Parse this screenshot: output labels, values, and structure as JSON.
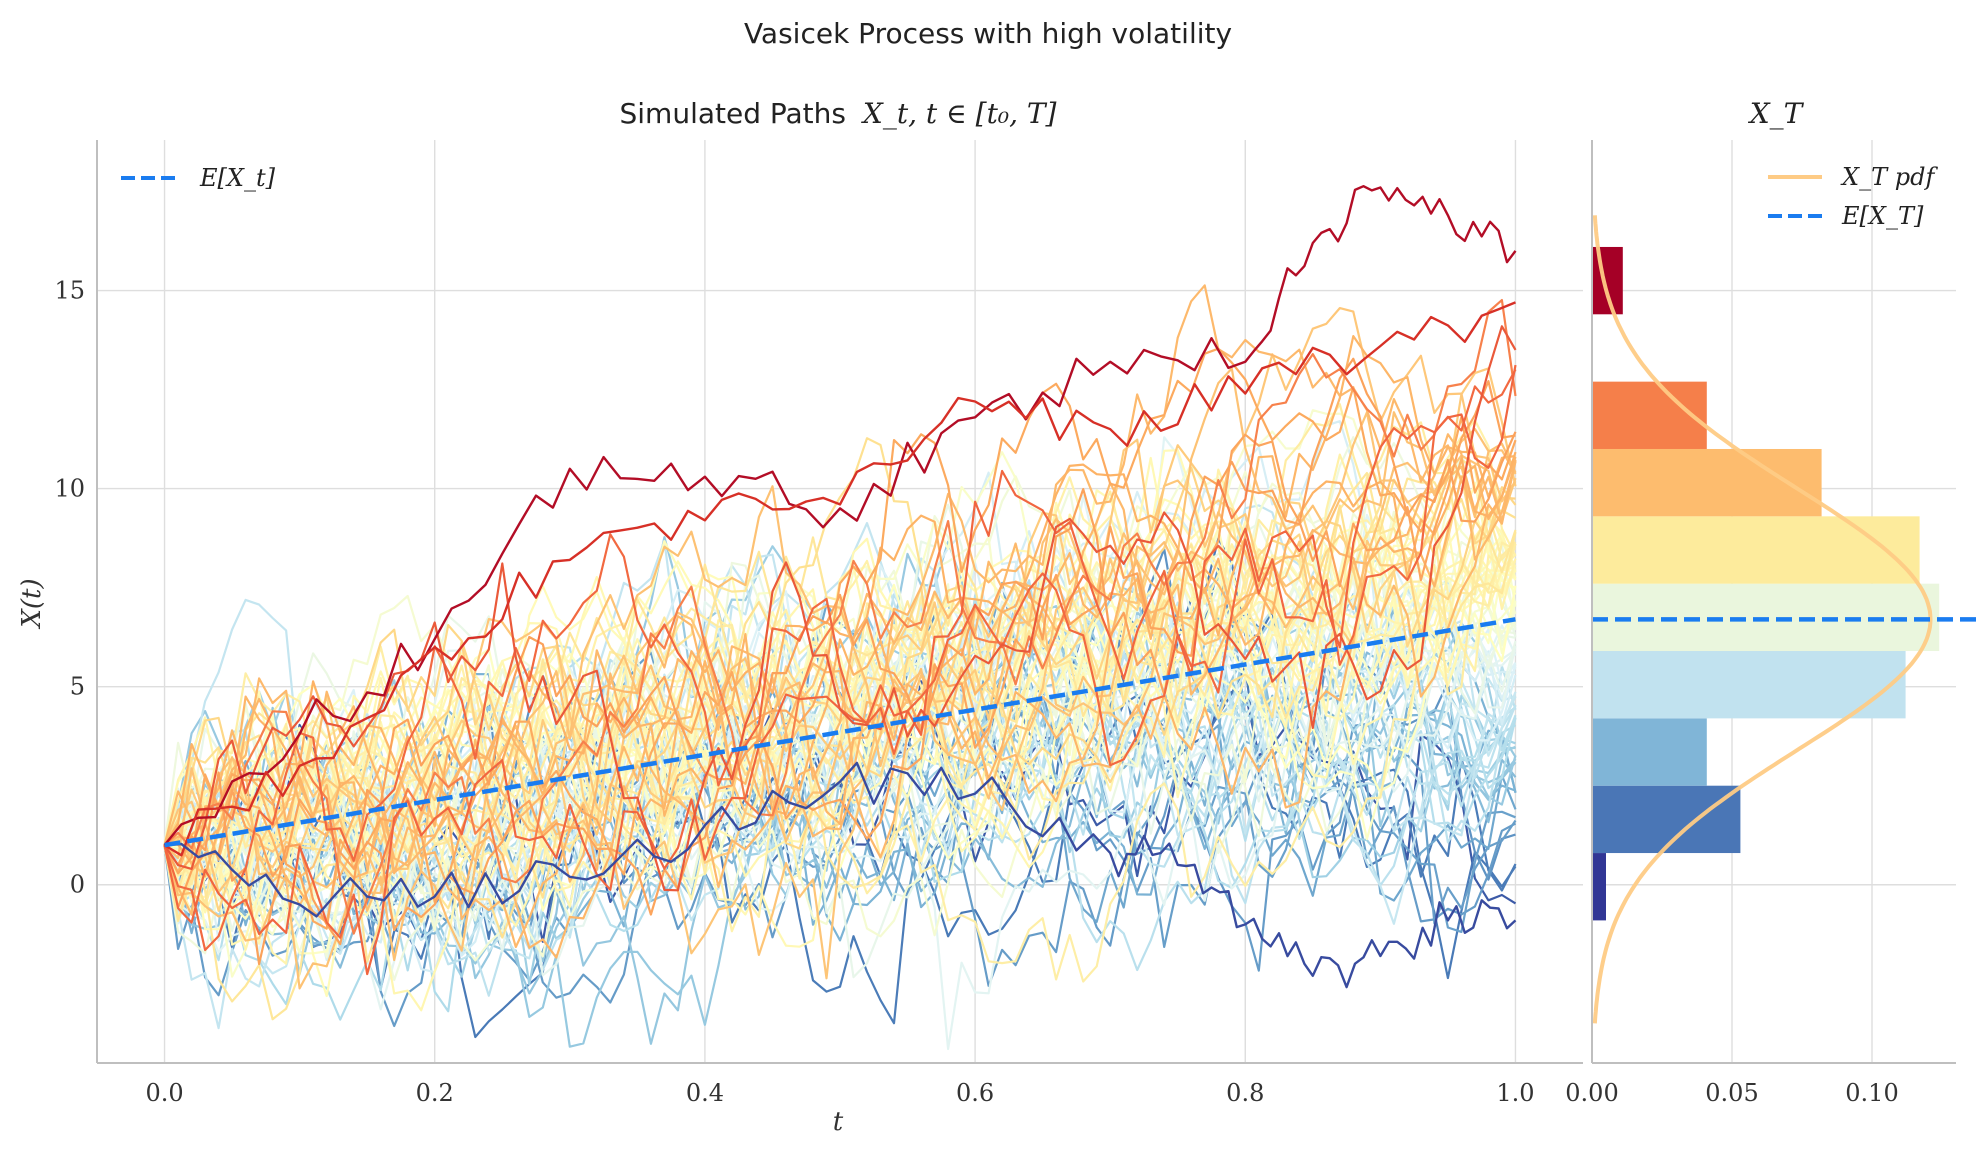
{
  "figure_title": "Vasicek Process with high volatility",
  "chart_data": [
    {
      "type": "line",
      "title_text": "Simulated Paths",
      "title_math": "X_t, t ∈ [t₀, T]",
      "xlabel": "t",
      "ylabel": "X(t)",
      "xlim": [
        -0.05,
        1.05
      ],
      "ylim": [
        -4.5,
        18.8
      ],
      "xticks": [
        0.0,
        0.2,
        0.4,
        0.6,
        0.8,
        1.0
      ],
      "xtick_labels": [
        "0.0",
        "0.2",
        "0.4",
        "0.6",
        "0.8",
        "1.0"
      ],
      "yticks": [
        0,
        5,
        10,
        15
      ],
      "ytick_labels": [
        "0",
        "5",
        "10",
        "15"
      ],
      "grid": true,
      "legend_position": "top-left",
      "mean_line": {
        "name": "E[X_t]",
        "x": [
          0.0,
          1.0
        ],
        "y": [
          1.0,
          6.7
        ],
        "color": "#1a7cf0",
        "style": "dashed"
      },
      "paths": {
        "count": 100,
        "x0": 1.0,
        "t_start": 0.0,
        "t_end": 1.0,
        "steps": 100,
        "colormap": "RdYlBu_r (colored by terminal value)",
        "highlighted_paths": [
          {
            "name": "highest path",
            "x": [
              0,
              0.1,
              0.2,
              0.3,
              0.4,
              0.5,
              0.6,
              0.7,
              0.8,
              0.85,
              0.9,
              0.95,
              1.0
            ],
            "y": [
              1,
              3.8,
              6.2,
              10.5,
              10.3,
              9.5,
              11.8,
              13.2,
              13.2,
              16.2,
              17.6,
              16.9,
              16.0
            ]
          },
          {
            "name": "second highest path",
            "x": [
              0,
              0.1,
              0.2,
              0.3,
              0.4,
              0.5,
              0.6,
              0.7,
              0.8,
              0.9,
              1.0
            ],
            "y": [
              1,
              3.0,
              6.0,
              8.2,
              9.2,
              9.6,
              12.2,
              11.5,
              12.4,
              13.6,
              14.7
            ]
          },
          {
            "name": "lowest path",
            "x": [
              0,
              0.1,
              0.2,
              0.3,
              0.4,
              0.5,
              0.6,
              0.7,
              0.75,
              0.8,
              0.85,
              0.9,
              0.95,
              1.0
            ],
            "y": [
              1,
              -0.5,
              -0.3,
              0.2,
              1.5,
              2.6,
              2.3,
              0.8,
              0.5,
              -1.0,
              -2.3,
              -1.8,
              -0.9,
              -0.9
            ]
          }
        ]
      }
    },
    {
      "type": "bar",
      "orientation": "horizontal",
      "title": "X_T",
      "xlim": [
        0.0,
        0.13
      ],
      "ylim": [
        -4.5,
        18.8
      ],
      "xticks": [
        0.0,
        0.05,
        0.1
      ],
      "xtick_labels": [
        "0.00",
        "0.05",
        "0.10"
      ],
      "grid": true,
      "legend_position": "top-right",
      "bins": [
        {
          "y_low": -0.9,
          "y_high": 0.8,
          "density": 0.005,
          "color": "#313695"
        },
        {
          "y_low": 0.8,
          "y_high": 2.5,
          "density": 0.053,
          "color": "#4a76b6"
        },
        {
          "y_low": 2.5,
          "y_high": 4.2,
          "density": 0.041,
          "color": "#80b5d7"
        },
        {
          "y_low": 4.2,
          "y_high": 5.9,
          "density": 0.112,
          "color": "#c1e2ef"
        },
        {
          "y_low": 5.9,
          "y_high": 7.6,
          "density": 0.124,
          "color": "#eaf6dd"
        },
        {
          "y_low": 7.6,
          "y_high": 9.3,
          "density": 0.117,
          "color": "#fdeb9c"
        },
        {
          "y_low": 9.3,
          "y_high": 11.0,
          "density": 0.082,
          "color": "#fdbc6e"
        },
        {
          "y_low": 11.0,
          "y_high": 12.7,
          "density": 0.041,
          "color": "#f57f4a"
        },
        {
          "y_low": 12.7,
          "y_high": 14.4,
          "density": 0.0,
          "color": "#f57f4a"
        },
        {
          "y_low": 14.4,
          "y_high": 16.1,
          "density": 0.011,
          "color": "#a50026"
        }
      ],
      "pdf": {
        "name": "X_T pdf",
        "mean": 6.7,
        "std": 3.3,
        "color": "#fecb85",
        "y_range": [
          -3.5,
          16.9
        ]
      },
      "mean_line": {
        "name": "E[X_T]",
        "y": 6.7,
        "color": "#1a7cf0",
        "style": "dashed"
      }
    }
  ]
}
